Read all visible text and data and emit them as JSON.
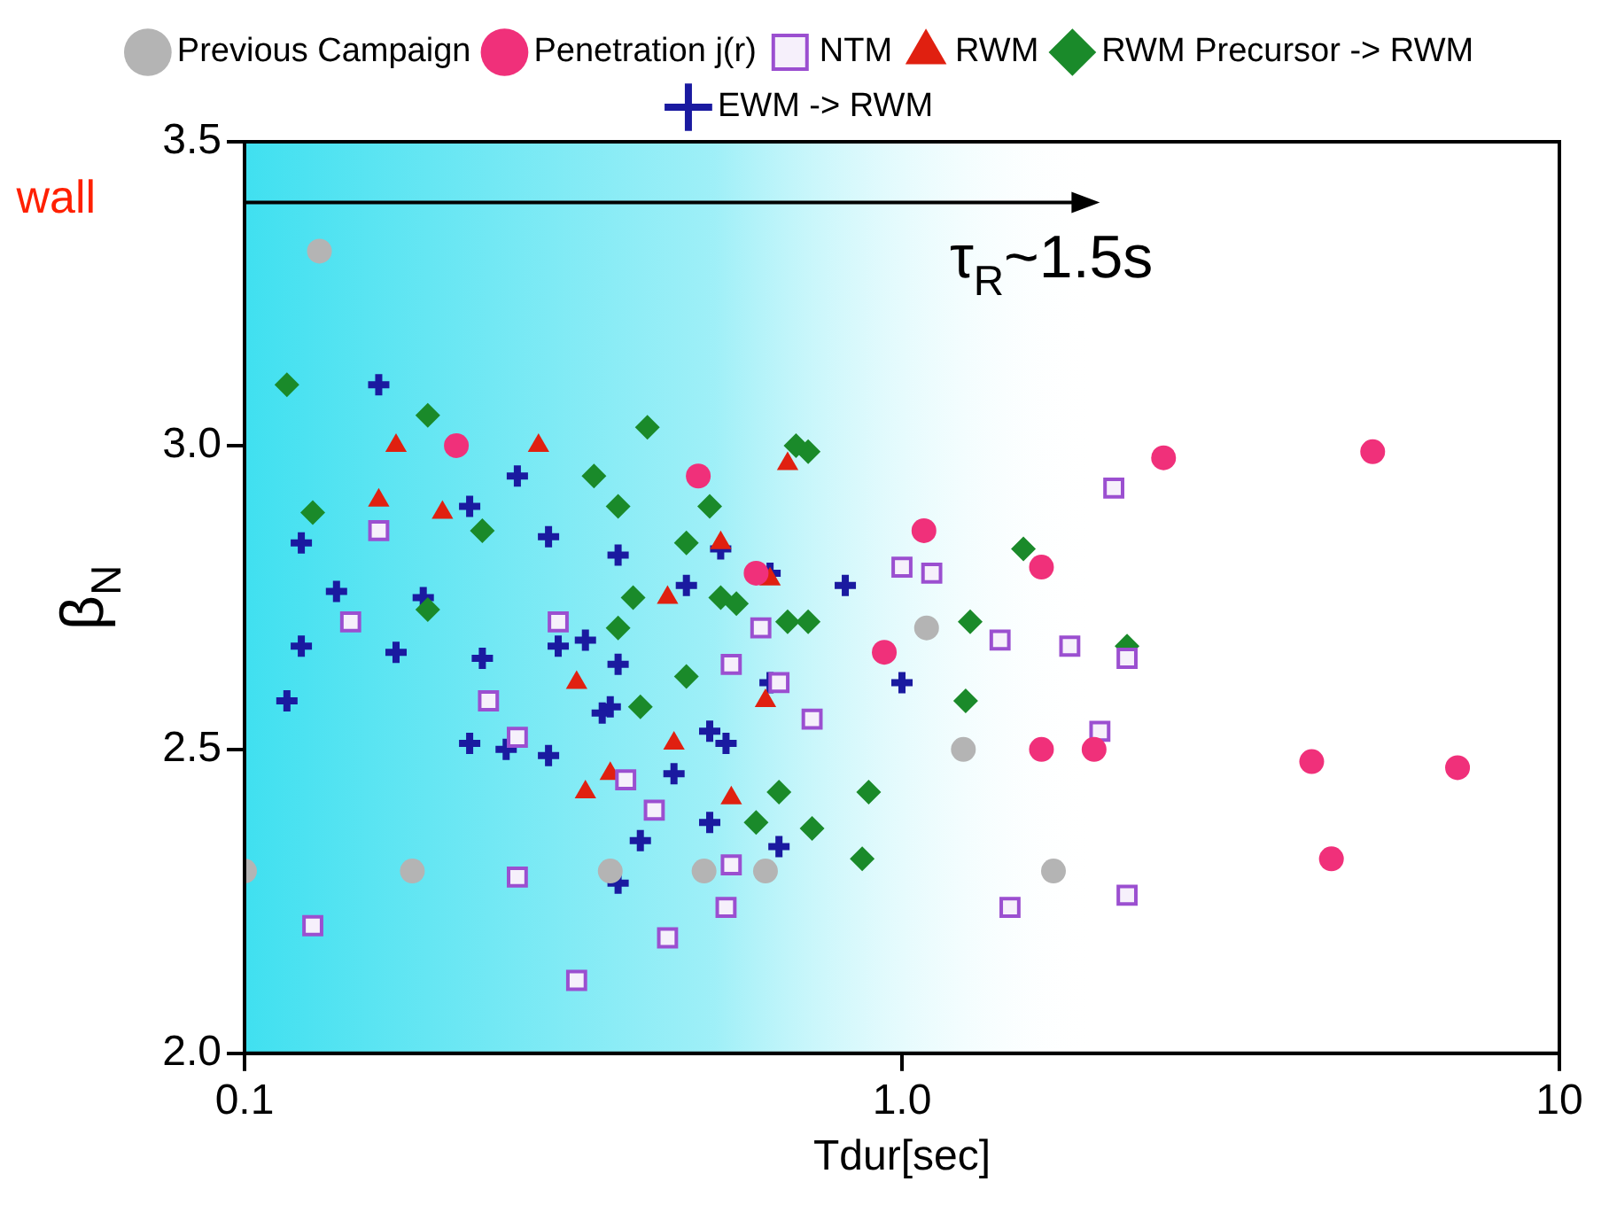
{
  "chart_data": {
    "type": "scatter",
    "xlabel": "Tdur[sec]",
    "ylabel": "β$_{N}$",
    "log": "x",
    "xlim": [
      0.1,
      10
    ],
    "xticks": [
      0.1,
      {
        "value": 1,
        "label": "1.0"
      },
      10
    ],
    "ylim": [
      2.0,
      3.5
    ],
    "yticks": [
      {
        "value": 2,
        "label": "2.0"
      },
      2.5,
      {
        "value": 3,
        "label": "3.0"
      },
      3.5
    ],
    "grid": false,
    "legend": "top",
    "bands": [
      {
        "axis": "x",
        "from": 0.1,
        "to": 2.0,
        "color": "#40e0f0"
      }
    ],
    "annotations": [
      "wall",
      {
        "text": "τ$_{R}$~1.5s",
        "x": 2.0,
        "y": 3.4
      }
    ],
    "series": [
      {
        "name": "Previous Campaign",
        "color": "#b4b4b4",
        "marker": "circle",
        "x": [
          0.13,
          0.1,
          0.18,
          0.36,
          0.5,
          0.62,
          1.09,
          1.24,
          1.7
        ],
        "values": [
          3.32,
          2.3,
          2.3,
          2.3,
          2.3,
          2.3,
          2.7,
          2.5,
          2.3
        ]
      },
      {
        "name": "Penetration j(r)",
        "color": "#f0307a",
        "marker": "circle",
        "x": [
          0.21,
          0.49,
          1.08,
          0.6,
          0.94,
          1.63,
          1.63,
          1.96,
          2.5,
          5.2,
          4.2,
          7.0,
          4.5
        ],
        "values": [
          3.0,
          2.95,
          2.86,
          2.79,
          2.66,
          2.8,
          2.5,
          2.5,
          2.98,
          2.99,
          2.48,
          2.47,
          2.32
        ]
      },
      {
        "name": "NTM",
        "color": "#9b4fd0",
        "marker": "square",
        "x": [
          0.16,
          0.145,
          0.235,
          0.3,
          0.26,
          0.38,
          0.26,
          0.127,
          0.32,
          0.61,
          0.55,
          0.65,
          0.73,
          0.42,
          0.55,
          0.54,
          0.44,
          1.0,
          1.11,
          1.41,
          1.8,
          2.2,
          2.1,
          2.0,
          1.46,
          2.2
        ],
        "values": [
          2.86,
          2.71,
          2.58,
          2.71,
          2.52,
          2.45,
          2.29,
          2.21,
          2.12,
          2.7,
          2.64,
          2.61,
          2.55,
          2.4,
          2.31,
          2.24,
          2.19,
          2.8,
          2.79,
          2.68,
          2.67,
          2.65,
          2.93,
          2.53,
          2.24,
          2.26
        ]
      },
      {
        "name": "RWM",
        "color": "#e02010",
        "marker": "triangle",
        "x": [
          0.17,
          0.28,
          0.16,
          0.2,
          0.32,
          0.33,
          0.36,
          0.67,
          0.53,
          0.44,
          0.63,
          0.62,
          0.45,
          0.55
        ],
        "values": [
          3.0,
          3.0,
          2.91,
          2.89,
          2.61,
          2.43,
          2.46,
          2.97,
          2.84,
          2.75,
          2.78,
          2.58,
          2.51,
          2.42
        ]
      },
      {
        "name": "RWM Precursor -> RWM",
        "color": "#1a8a2a",
        "marker": "diamond",
        "x": [
          0.116,
          0.19,
          0.127,
          0.23,
          0.34,
          0.37,
          0.39,
          0.37,
          0.19,
          0.4,
          0.41,
          0.72,
          0.69,
          0.51,
          0.47,
          0.53,
          0.56,
          0.67,
          0.72,
          0.47,
          0.65,
          0.89,
          0.73,
          0.87,
          0.6,
          1.53,
          1.27,
          2.2,
          1.25
        ],
        "values": [
          3.1,
          3.05,
          2.89,
          2.86,
          2.95,
          2.9,
          2.75,
          2.7,
          2.73,
          2.57,
          3.03,
          2.99,
          3.0,
          2.9,
          2.84,
          2.75,
          2.74,
          2.71,
          2.71,
          2.62,
          2.43,
          2.43,
          2.37,
          2.32,
          2.38,
          2.83,
          2.71,
          2.67,
          2.58
        ]
      },
      {
        "name": "EWM -> RWM",
        "color": "#1a1aa0",
        "marker": "cross",
        "x": [
          0.16,
          0.122,
          0.138,
          0.122,
          0.116,
          0.187,
          0.17,
          0.22,
          0.26,
          0.29,
          0.37,
          0.23,
          0.3,
          0.33,
          0.37,
          0.22,
          0.25,
          0.29,
          0.35,
          0.36,
          0.4,
          0.37,
          0.47,
          0.53,
          0.63,
          0.82,
          1.0,
          0.63,
          0.51,
          0.54,
          0.45,
          0.51,
          0.65
        ],
        "values": [
          3.1,
          2.84,
          2.76,
          2.67,
          2.58,
          2.75,
          2.66,
          2.9,
          2.95,
          2.85,
          2.82,
          2.65,
          2.67,
          2.68,
          2.64,
          2.51,
          2.5,
          2.49,
          2.56,
          2.57,
          2.35,
          2.28,
          2.77,
          2.83,
          2.79,
          2.77,
          2.61,
          2.61,
          2.53,
          2.51,
          2.46,
          2.38,
          2.34
        ]
      }
    ]
  }
}
